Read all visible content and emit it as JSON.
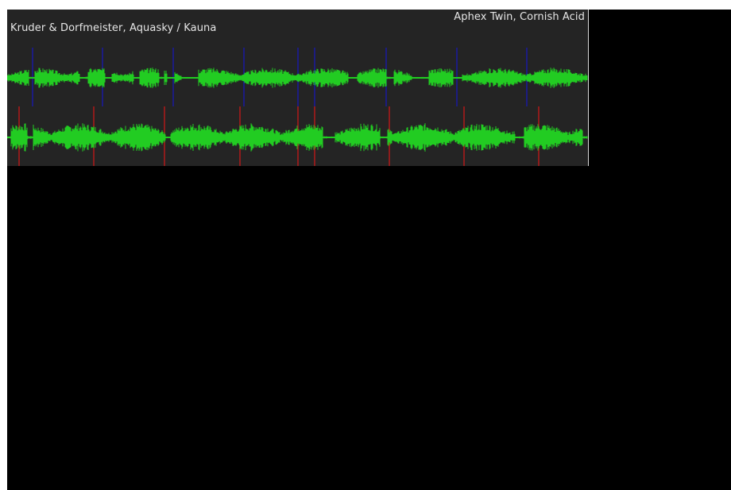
{
  "deck_top": {
    "title": "Aphex Twin, Cornish Acid",
    "waveform_color": "#22cc22",
    "beat_marker_color": "#1a1aa0"
  },
  "deck_bottom": {
    "title": "Kruder & Dorfmeister, Aquasky / Kauna",
    "waveform_color": "#22cc22",
    "beat_marker_color": "#b01a1a"
  },
  "colors": {
    "panel_background": "#242424",
    "screen_background": "#000000",
    "label_text": "#e6e6e6"
  }
}
